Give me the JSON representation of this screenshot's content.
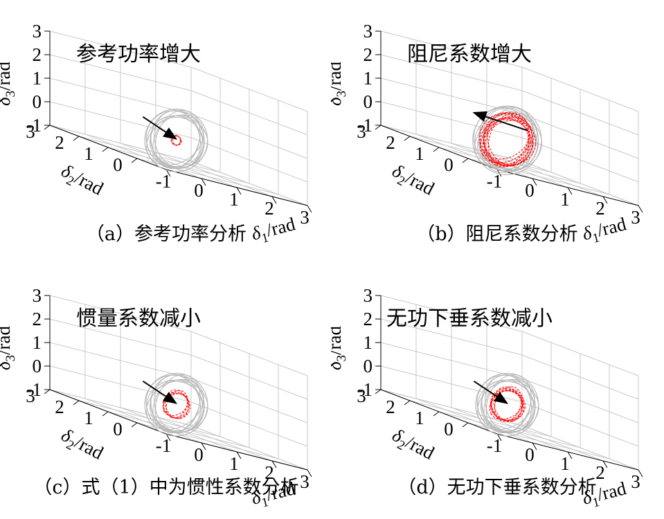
{
  "chart_data": [
    {
      "type": "scatter",
      "panel": "a",
      "caption": "（a）参考功率分析",
      "annotation": "参考功率增大",
      "xlabel": "δ1/rad",
      "ylabel": "δ2/rad",
      "zlabel": "δ3/rad",
      "xticks": [
        "-1",
        "0",
        "1",
        "2",
        "3"
      ],
      "yticks": [
        "3",
        "2",
        "1",
        "0"
      ],
      "zticks": [
        "3",
        "2",
        "1",
        "0",
        "-1"
      ],
      "xlim": [
        -1,
        3
      ],
      "ylim": [
        -1,
        3
      ],
      "zlim": [
        -1,
        3
      ],
      "grid": true,
      "series": [
        {
          "shape": "sphere",
          "center": [
            0.6,
            0.6,
            0.1
          ],
          "radius": 1.05,
          "color": "#b8b8b8"
        },
        {
          "shape": "sphere",
          "center": [
            0.6,
            0.6,
            0.1
          ],
          "radius": 0.18,
          "color": "#ff0000"
        }
      ]
    },
    {
      "type": "scatter",
      "panel": "b",
      "caption": "（b）阻尼系数分析",
      "annotation": "阻尼系数增大",
      "xlabel": "δ1/rad",
      "ylabel": "δ2/rad",
      "zlabel": "δ3/rad",
      "xticks": [
        "-1",
        "0",
        "1",
        "2",
        "3"
      ],
      "yticks": [
        "3",
        "2",
        "1",
        "0"
      ],
      "zticks": [
        "3",
        "2",
        "1",
        "0",
        "-1"
      ],
      "xlim": [
        -1,
        3
      ],
      "ylim": [
        -1,
        3
      ],
      "zlim": [
        -1,
        3
      ],
      "grid": true,
      "series": [
        {
          "shape": "sphere",
          "center": [
            0.6,
            0.6,
            0.1
          ],
          "radius": 1.15,
          "color": "#b8b8b8"
        },
        {
          "shape": "sphere",
          "center": [
            0.6,
            0.6,
            0.1
          ],
          "radius": 0.95,
          "color": "#ff0000"
        }
      ]
    },
    {
      "type": "scatter",
      "panel": "c",
      "caption": "（c）式（1）中为惯性系数分析",
      "annotation": "惯量系数减小",
      "xlabel": "δ1/rad",
      "ylabel": "δ2/rad",
      "zlabel": "δ3/rad",
      "xticks": [
        "-1",
        "0",
        "1",
        "2",
        "3"
      ],
      "yticks": [
        "3",
        "2",
        "1",
        "0"
      ],
      "zticks": [
        "3",
        "2",
        "1",
        "0",
        "-1"
      ],
      "xlim": [
        -1,
        3
      ],
      "ylim": [
        -1,
        3
      ],
      "zlim": [
        -1,
        3
      ],
      "grid": true,
      "series": [
        {
          "shape": "sphere",
          "center": [
            0.6,
            0.6,
            0.1
          ],
          "radius": 1.05,
          "color": "#b8b8b8"
        },
        {
          "shape": "sphere",
          "center": [
            0.6,
            0.6,
            0.1
          ],
          "radius": 0.5,
          "color": "#ff0000"
        }
      ]
    },
    {
      "type": "scatter",
      "panel": "d",
      "caption": "（d）无功下垂系数分析",
      "annotation": "无功下垂系数减小",
      "xlabel": "δ1/rad",
      "ylabel": "δ2/rad",
      "zlabel": "δ3/rad",
      "xticks": [
        "-1",
        "0",
        "1",
        "2",
        "3"
      ],
      "yticks": [
        "3",
        "2",
        "1",
        "0"
      ],
      "zticks": [
        "3",
        "2",
        "1",
        "0",
        "-1"
      ],
      "xlim": [
        -1,
        3
      ],
      "ylim": [
        -1,
        3
      ],
      "zlim": [
        -1,
        3
      ],
      "grid": true,
      "series": [
        {
          "shape": "sphere",
          "center": [
            0.6,
            0.6,
            0.1
          ],
          "radius": 1.05,
          "color": "#b8b8b8"
        },
        {
          "shape": "sphere",
          "center": [
            0.6,
            0.6,
            0.1
          ],
          "radius": 0.62,
          "color": "#ff0000"
        }
      ]
    }
  ]
}
